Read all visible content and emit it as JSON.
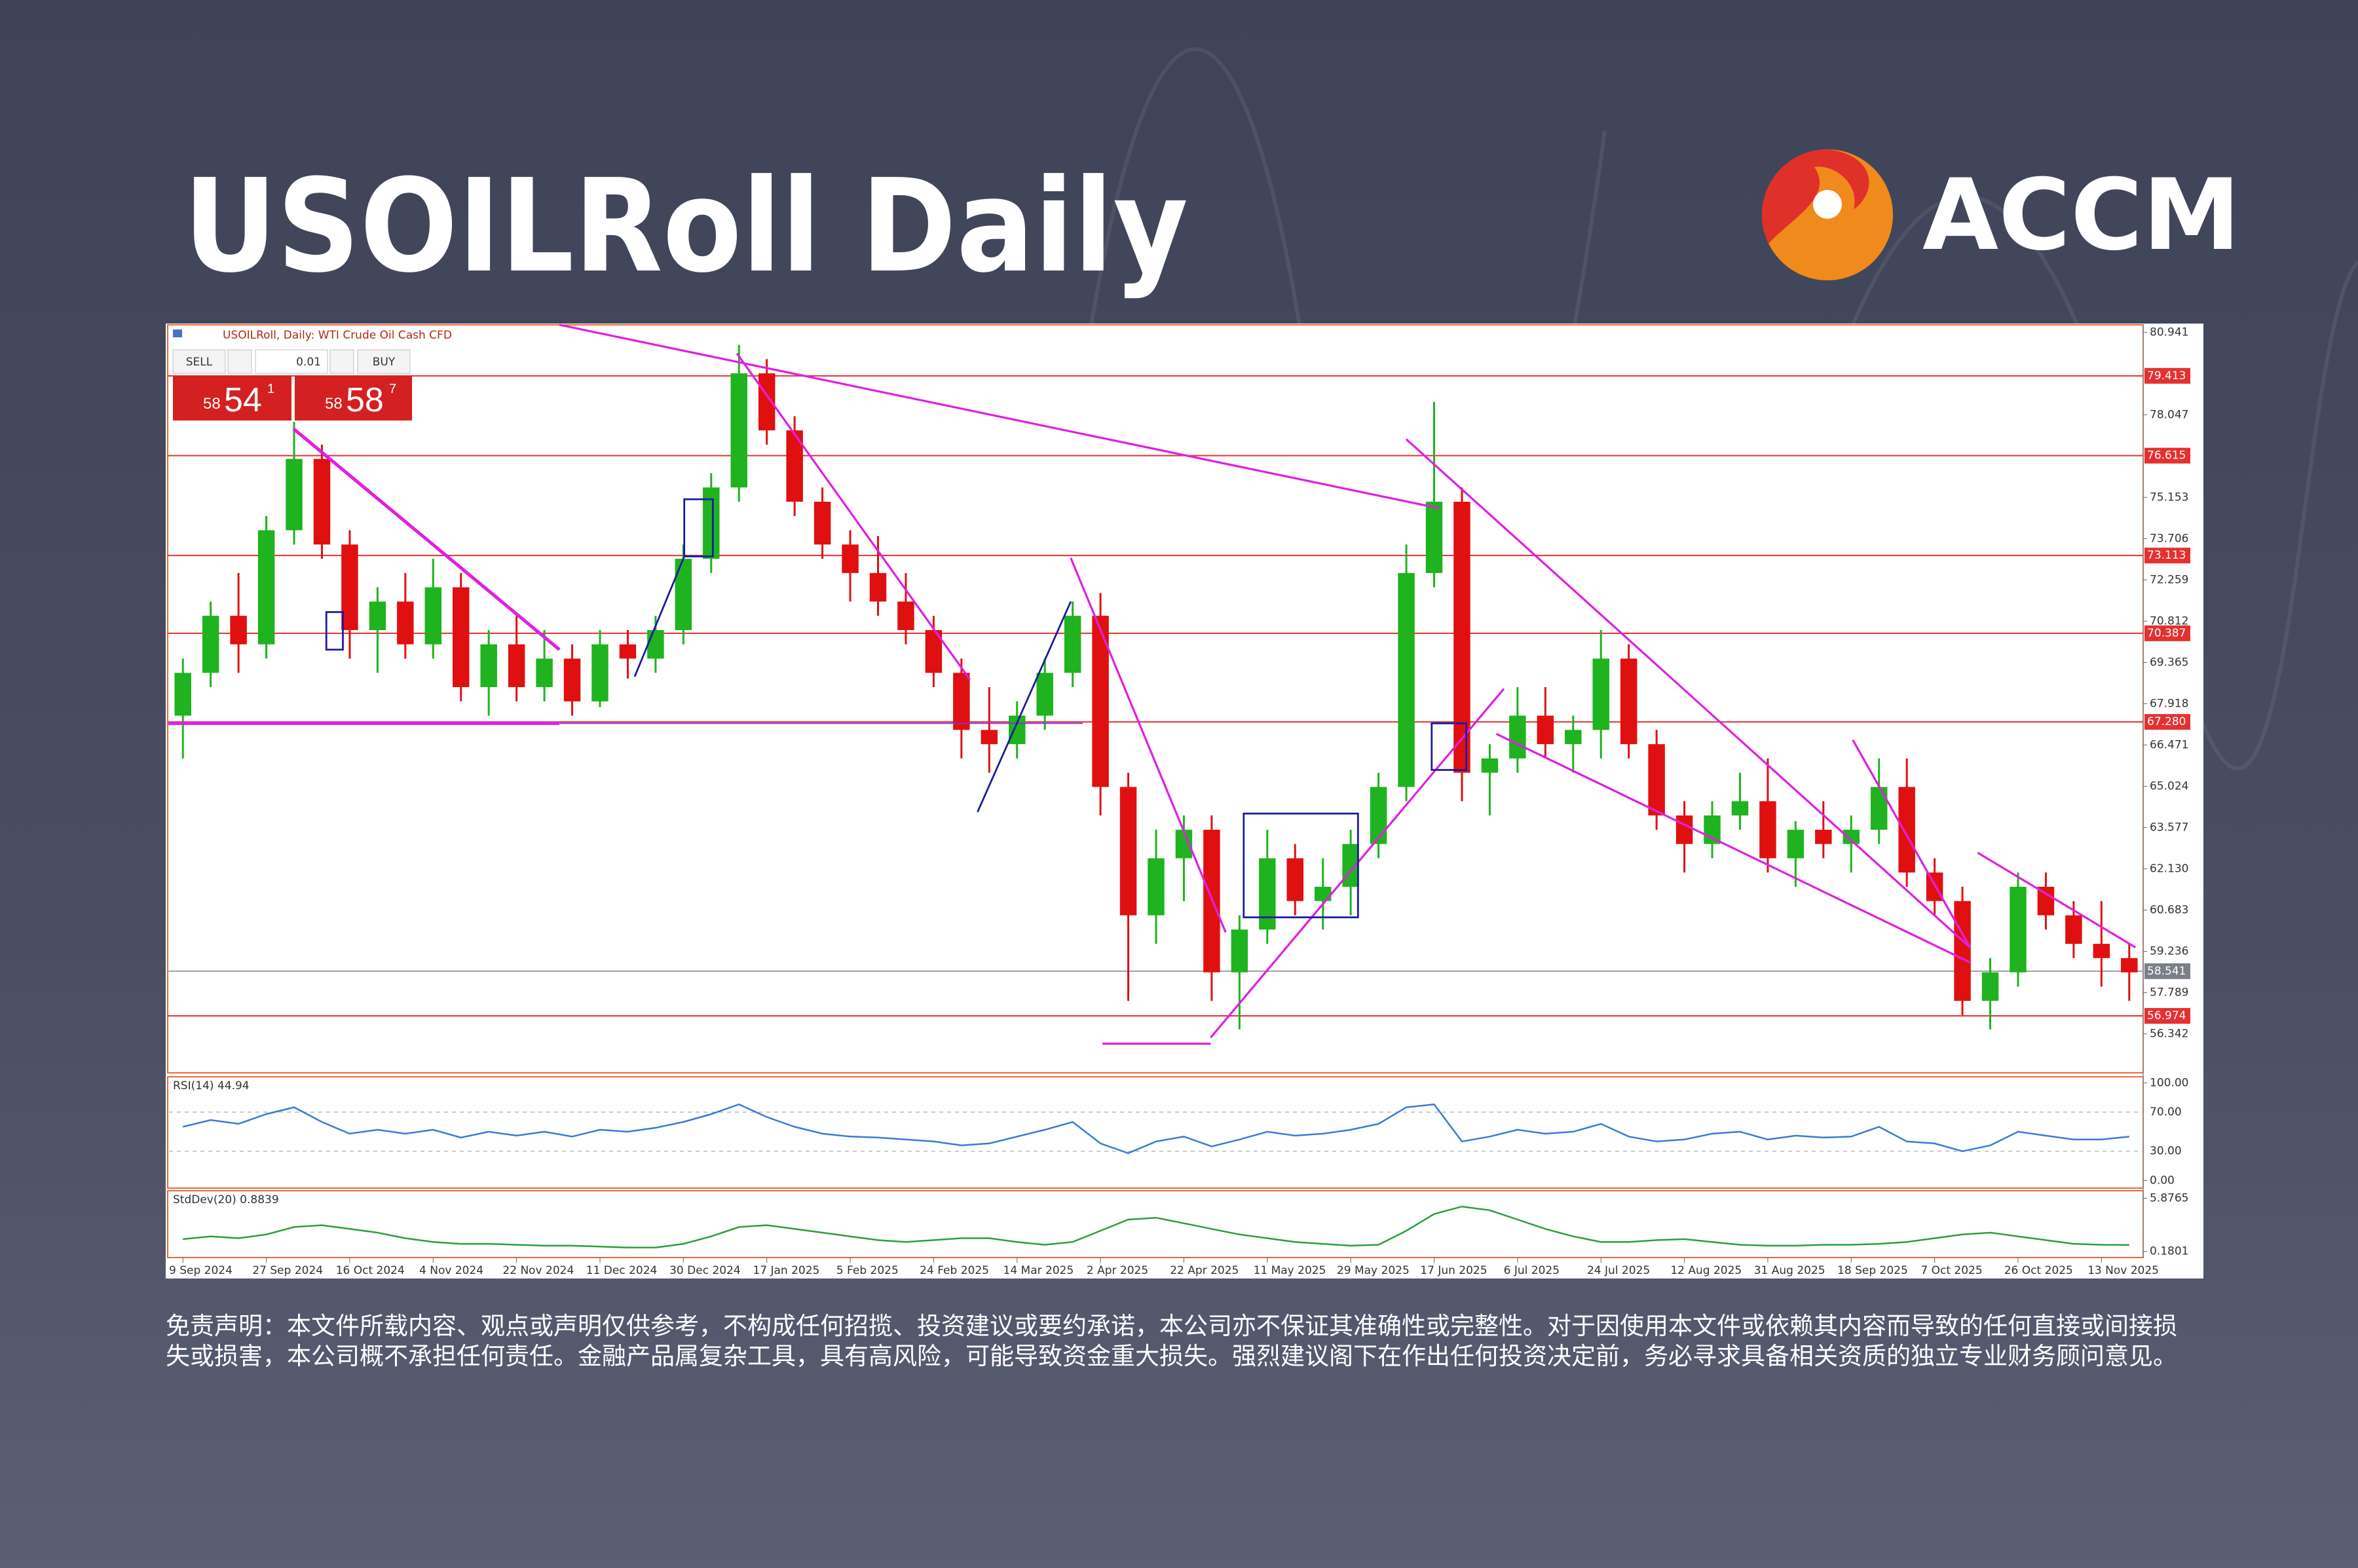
{
  "header": {
    "title": "USOILRoll Daily",
    "logo_text": "ACCM"
  },
  "chart_data": {
    "type": "candlestick",
    "title": "USOILRoll, Daily: WTI Crude Oil Cash CFD",
    "trade_panel": {
      "sell": "SELL",
      "buy": "BUY",
      "lot": "0.01",
      "sell_price": [
        "58",
        "54",
        "1"
      ],
      "buy_price": [
        "58",
        "58",
        "7"
      ]
    },
    "categories": [
      "9 Sep 2024",
      null,
      null,
      "27 Sep 2024",
      null,
      null,
      "16 Oct 2024",
      null,
      null,
      "4 Nov 2024",
      null,
      null,
      "22 Nov 2024",
      null,
      null,
      "11 Dec 2024",
      null,
      null,
      "30 Dec 2024",
      null,
      null,
      "17 Jan 2025",
      null,
      null,
      "5 Feb 2025",
      null,
      null,
      "24 Feb 2025",
      null,
      null,
      "14 Mar 2025",
      null,
      null,
      "2 Apr 2025",
      null,
      null,
      "22 Apr 2025",
      null,
      null,
      "11 May 2025",
      null,
      null,
      "29 May 2025",
      null,
      null,
      "17 Jun 2025",
      null,
      null,
      "6 Jul 2025",
      null,
      null,
      "24 Jul 2025",
      null,
      null,
      "12 Aug 2025",
      null,
      null,
      "31 Aug 2025",
      null,
      null,
      "18 Sep 2025",
      null,
      null,
      "7 Oct 2025",
      null,
      null,
      "26 Oct 2025",
      null,
      null,
      "13 Nov 2025",
      null
    ],
    "ohlc": [
      [
        67.5,
        69.5,
        66.0,
        69.0
      ],
      [
        69.0,
        71.5,
        68.5,
        71.0
      ],
      [
        71.0,
        72.5,
        69.0,
        70.0
      ],
      [
        70.0,
        74.5,
        69.5,
        74.0
      ],
      [
        74.0,
        77.8,
        73.5,
        76.5
      ],
      [
        76.5,
        77.0,
        73.0,
        73.5
      ],
      [
        73.5,
        74.0,
        69.5,
        70.5
      ],
      [
        70.5,
        72.0,
        69.0,
        71.5
      ],
      [
        71.5,
        72.5,
        69.5,
        70.0
      ],
      [
        70.0,
        73.0,
        69.5,
        72.0
      ],
      [
        72.0,
        72.5,
        68.0,
        68.5
      ],
      [
        68.5,
        70.5,
        67.5,
        70.0
      ],
      [
        70.0,
        71.0,
        68.0,
        68.5
      ],
      [
        68.5,
        70.5,
        68.0,
        69.5
      ],
      [
        69.5,
        70.0,
        67.5,
        68.0
      ],
      [
        68.0,
        70.5,
        67.8,
        70.0
      ],
      [
        70.0,
        70.5,
        68.8,
        69.5
      ],
      [
        69.5,
        71.0,
        69.0,
        70.5
      ],
      [
        70.5,
        73.5,
        70.0,
        73.0
      ],
      [
        73.0,
        76.0,
        72.5,
        75.5
      ],
      [
        75.5,
        80.5,
        75.0,
        79.5
      ],
      [
        79.5,
        80.0,
        77.0,
        77.5
      ],
      [
        77.5,
        78.0,
        74.5,
        75.0
      ],
      [
        75.0,
        75.5,
        73.0,
        73.5
      ],
      [
        73.5,
        74.0,
        71.5,
        72.5
      ],
      [
        72.5,
        73.8,
        71.0,
        71.5
      ],
      [
        71.5,
        72.5,
        70.0,
        70.5
      ],
      [
        70.5,
        71.0,
        68.5,
        69.0
      ],
      [
        69.0,
        69.5,
        66.0,
        67.0
      ],
      [
        67.0,
        68.5,
        65.5,
        66.5
      ],
      [
        66.5,
        68.0,
        66.0,
        67.5
      ],
      [
        67.5,
        69.5,
        67.0,
        69.0
      ],
      [
        69.0,
        71.5,
        68.5,
        71.0
      ],
      [
        71.0,
        71.8,
        64.0,
        65.0
      ],
      [
        65.0,
        65.5,
        57.5,
        60.5
      ],
      [
        60.5,
        63.5,
        59.5,
        62.5
      ],
      [
        62.5,
        64.0,
        61.0,
        63.5
      ],
      [
        63.5,
        64.0,
        57.5,
        58.5
      ],
      [
        58.5,
        60.5,
        56.5,
        60.0
      ],
      [
        60.0,
        63.5,
        59.5,
        62.5
      ],
      [
        62.5,
        63.0,
        60.5,
        61.0
      ],
      [
        61.0,
        62.5,
        60.0,
        61.5
      ],
      [
        61.5,
        63.5,
        60.5,
        63.0
      ],
      [
        63.0,
        65.5,
        62.5,
        65.0
      ],
      [
        65.0,
        73.5,
        64.5,
        72.5
      ],
      [
        72.5,
        78.5,
        72.0,
        75.0
      ],
      [
        75.0,
        75.5,
        64.5,
        65.5
      ],
      [
        65.5,
        66.5,
        64.0,
        66.0
      ],
      [
        66.0,
        68.5,
        65.5,
        67.5
      ],
      [
        67.5,
        68.5,
        66.0,
        66.5
      ],
      [
        66.5,
        67.5,
        65.5,
        67.0
      ],
      [
        67.0,
        70.5,
        66.0,
        69.5
      ],
      [
        69.5,
        70.0,
        66.0,
        66.5
      ],
      [
        66.5,
        67.0,
        63.5,
        64.0
      ],
      [
        64.0,
        64.5,
        62.0,
        63.0
      ],
      [
        63.0,
        64.5,
        62.5,
        64.0
      ],
      [
        64.0,
        65.5,
        63.5,
        64.5
      ],
      [
        64.5,
        66.0,
        62.0,
        62.5
      ],
      [
        62.5,
        63.8,
        61.5,
        63.5
      ],
      [
        63.5,
        64.5,
        62.5,
        63.0
      ],
      [
        63.0,
        64.0,
        62.0,
        63.5
      ],
      [
        63.5,
        66.0,
        63.0,
        65.0
      ],
      [
        65.0,
        66.0,
        61.5,
        62.0
      ],
      [
        62.0,
        62.5,
        60.5,
        61.0
      ],
      [
        61.0,
        61.5,
        57.0,
        57.5
      ],
      [
        57.5,
        59.0,
        56.5,
        58.5
      ],
      [
        58.5,
        62.0,
        58.0,
        61.5
      ],
      [
        61.5,
        62.0,
        60.0,
        60.5
      ],
      [
        60.5,
        61.0,
        59.0,
        59.5
      ],
      [
        59.5,
        61.0,
        58.0,
        59.0
      ],
      [
        59.0,
        59.5,
        57.5,
        58.5
      ]
    ],
    "up_color": "#1fb31f",
    "down_color": "#e01010",
    "ylim": [
      55.0,
      81.2
    ],
    "yticks": [
      80.941,
      78.047,
      75.153,
      73.706,
      72.259,
      70.812,
      69.365,
      67.918,
      66.471,
      65.024,
      63.577,
      {
        "value": 62.13,
        "label": "62.130"
      },
      60.683,
      59.236,
      57.789,
      56.342
    ],
    "levels": [
      79.413,
      76.615,
      73.113,
      70.387,
      {
        "value": 67.28,
        "label": "67.280"
      },
      56.974
    ],
    "level_color": "#e53030",
    "bid": 58.541,
    "indicators": [
      {
        "label": "RSI(14)",
        "color": "#3a7bd5",
        "ylim": [
          -7.7,
          106.2
        ],
        "yticks": [
          {
            "value": 100,
            "label": "100.00"
          },
          {
            "value": 70,
            "label": "70.00"
          },
          {
            "value": 30,
            "label": "30.00"
          },
          {
            "value": 0,
            "label": "0.00"
          }
        ],
        "values": [
          55,
          62,
          58,
          68,
          75,
          60,
          48,
          52,
          48,
          52,
          44,
          50,
          46,
          50,
          45,
          52,
          50,
          54,
          60,
          68,
          78,
          65,
          55,
          48,
          45,
          44,
          42,
          40,
          36,
          38,
          45,
          52,
          60,
          38,
          28,
          40,
          45,
          35,
          42,
          50,
          46,
          48,
          52,
          58,
          75,
          78,
          40,
          45,
          52,
          48,
          50,
          58,
          45,
          40,
          42,
          48,
          50,
          42,
          46,
          44,
          45,
          55,
          40,
          38,
          30,
          36,
          50,
          46,
          42,
          42,
          44.94
        ]
      },
      {
        "label": "StdDev(20)",
        "color": "#2e9e3a",
        "ylim": [
          -0.47,
          6.69
        ],
        "yticks": [
          5.8765,
          0.1801
        ],
        "values": [
          1.5,
          1.8,
          1.6,
          2.0,
          2.8,
          3.0,
          2.6,
          2.2,
          1.6,
          1.2,
          1.0,
          1.0,
          0.9,
          0.8,
          0.8,
          0.7,
          0.6,
          0.6,
          1.0,
          1.8,
          2.8,
          3.0,
          2.6,
          2.2,
          1.8,
          1.4,
          1.2,
          1.4,
          1.6,
          1.6,
          1.2,
          0.9,
          1.2,
          2.4,
          3.6,
          3.8,
          3.2,
          2.6,
          2.0,
          1.6,
          1.2,
          1.0,
          0.8,
          0.9,
          2.4,
          4.2,
          5.0,
          4.6,
          3.6,
          2.6,
          1.8,
          1.2,
          1.2,
          1.4,
          1.5,
          1.2,
          0.9,
          0.8,
          0.8,
          0.9,
          0.9,
          1.0,
          1.2,
          1.6,
          2.0,
          2.2,
          1.8,
          1.4,
          1.0,
          0.9,
          0.8839
        ]
      }
    ]
  },
  "disclaimer": "免责声明：本文件所载内容、观点或声明仅供参考，不构成任何招揽、投资建议或要约承诺，本公司亦不保证其准确性或完整性。对于因使用本文件或依赖其内容而导致的任何直接或间接损失或损害，本公司概不承担任何责任。金融产品属复杂工具，具有高风险，可能导致资金重大损失。强烈建议阁下在作出任何投资决定前，务必寻求具备相关资质的独立专业财务顾问意见。"
}
